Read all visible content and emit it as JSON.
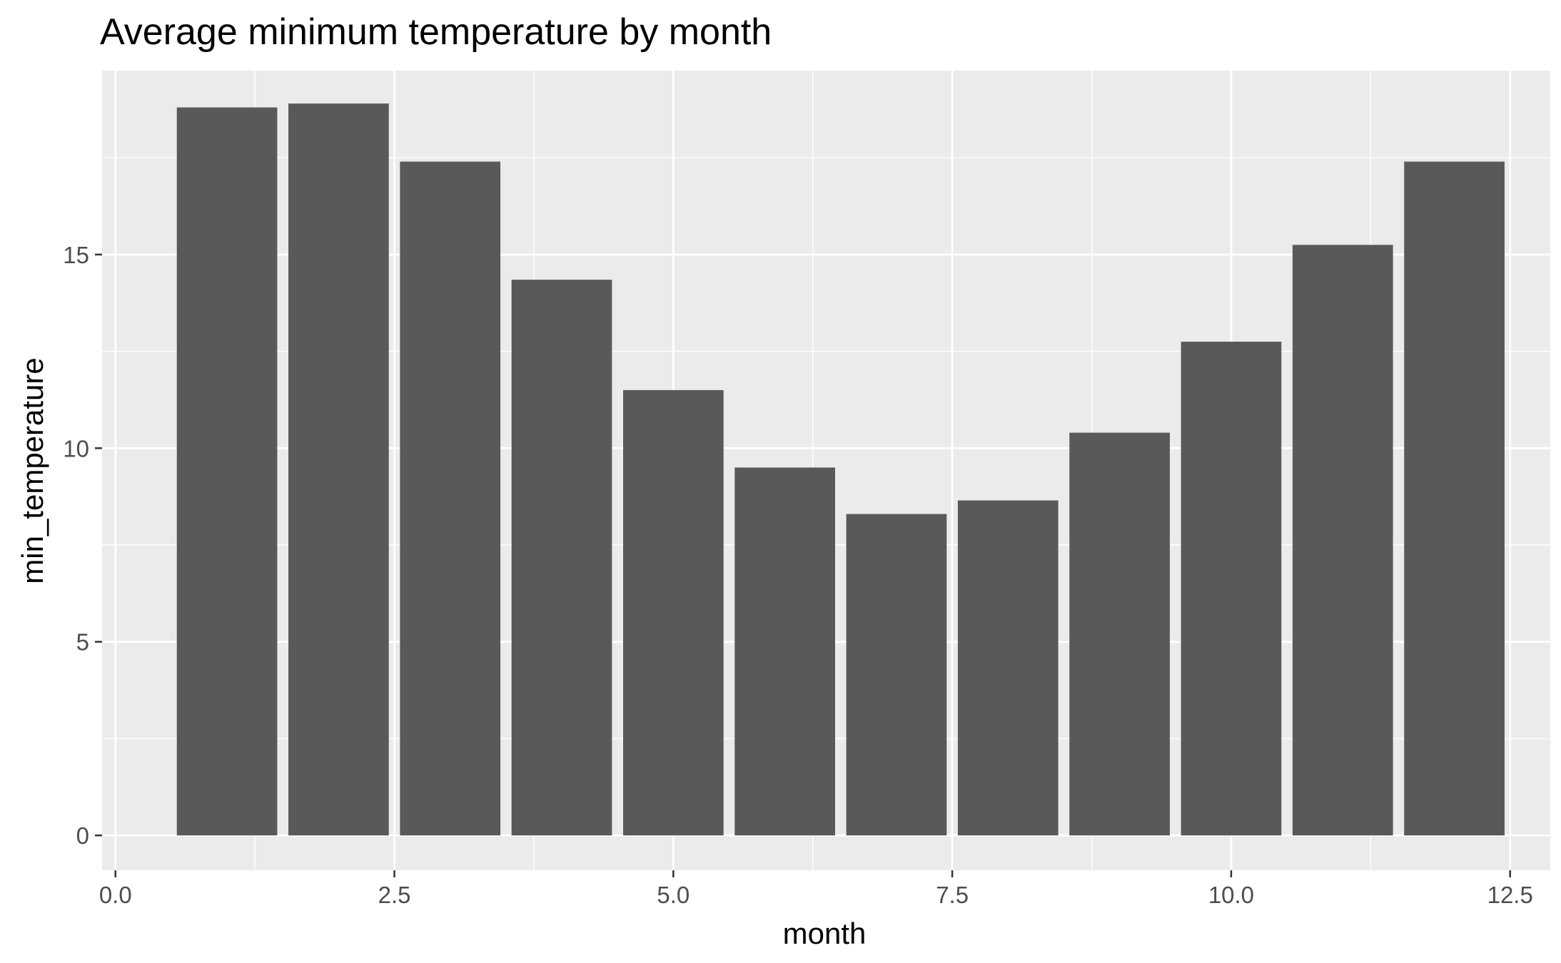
{
  "chart_data": {
    "type": "bar",
    "title": "Average minimum temperature by month",
    "xlabel": "month",
    "ylabel": "min_temperature",
    "x": [
      1,
      2,
      3,
      4,
      5,
      6,
      7,
      8,
      9,
      10,
      11,
      12
    ],
    "values": [
      18.8,
      18.9,
      17.4,
      14.35,
      11.5,
      9.5,
      8.3,
      8.65,
      10.4,
      12.75,
      15.25,
      17.4
    ],
    "bar_width": 0.9,
    "xlim": [
      -0.12,
      12.86
    ],
    "ylim": [
      -0.9,
      19.75
    ],
    "x_ticks": [
      0,
      2.5,
      5,
      7.5,
      10,
      12.5
    ],
    "x_tick_labels": [
      "0.0",
      "2.5",
      "5.0",
      "7.5",
      "10.0",
      "12.5"
    ],
    "y_ticks": [
      0,
      5,
      10,
      15
    ],
    "y_tick_labels": [
      "0",
      "5",
      "10",
      "15"
    ],
    "grid": true,
    "legend": "none",
    "colors": {
      "panel": "#EBEBEB",
      "bar": "#595959",
      "grid": "#FFFFFF",
      "tick": "#333333",
      "tick_label": "#4D4D4D"
    }
  }
}
